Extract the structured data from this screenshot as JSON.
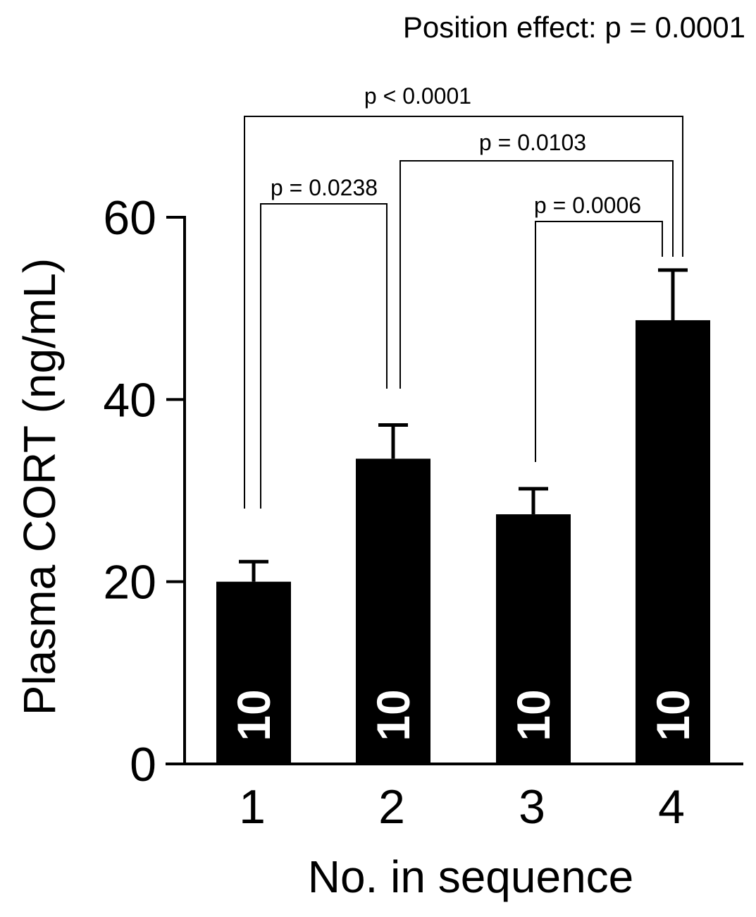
{
  "chart_data": {
    "type": "bar",
    "title": "Position effect: p = 0.0001",
    "xlabel": "No. in sequence",
    "ylabel": "Plasma CORT (ng/mL)",
    "categories": [
      "1",
      "2",
      "3",
      "4"
    ],
    "values": [
      20.0,
      33.5,
      27.4,
      48.7
    ],
    "errors": [
      2.2,
      3.7,
      2.8,
      5.5
    ],
    "n_labels": [
      "10",
      "10",
      "10",
      "10"
    ],
    "ylim": [
      0,
      60
    ],
    "yticks": [
      0,
      20,
      40,
      60
    ],
    "ytick_labels": [
      "0",
      "20",
      "40",
      "60"
    ],
    "bar_color": "#000000",
    "grid": false,
    "comparisons": [
      {
        "from": 1,
        "to": 2,
        "label": "p = 0.0238"
      },
      {
        "from": 3,
        "to": 4,
        "label": "p = 0.0006"
      },
      {
        "from": 2,
        "to": 4,
        "label": "p = 0.0103"
      },
      {
        "from": 1,
        "to": 4,
        "label": "p < 0.0001"
      }
    ]
  }
}
